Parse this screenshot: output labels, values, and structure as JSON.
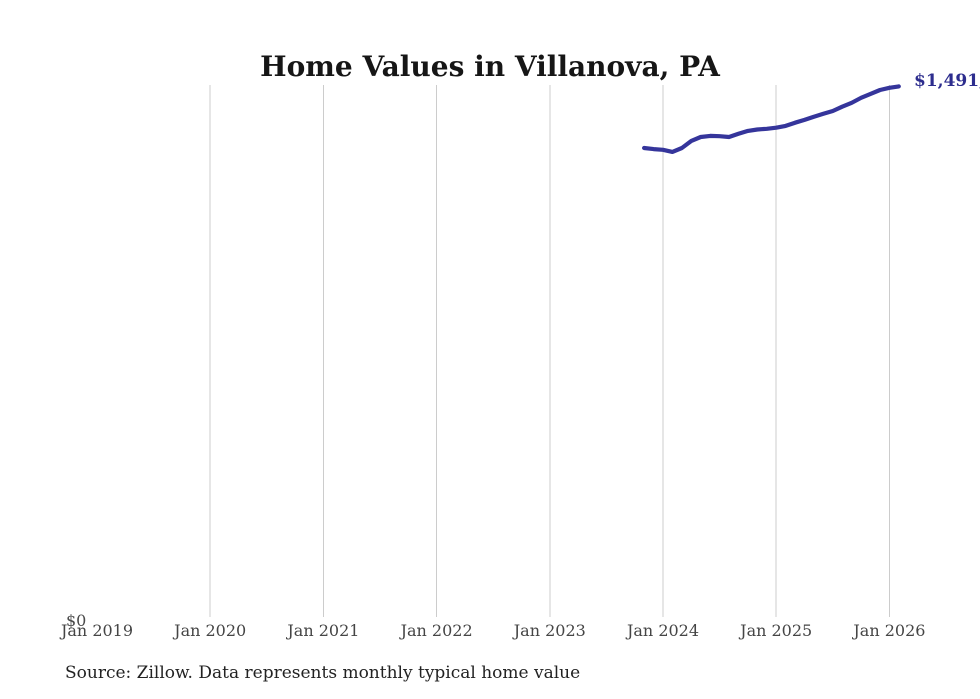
{
  "chart": {
    "title": "Home Values in Villanova, PA",
    "y_zero_label": "$0",
    "latest_value_label": "$1,491,",
    "source_note": "Source: Zillow. Data represents monthly typical home value"
  },
  "colors": {
    "line": "#35359B",
    "end_label_text": "#2D2D8E",
    "grid": "#CCCCCC",
    "title_text": "#161616",
    "tick_text": "#454545"
  },
  "chart_data": {
    "type": "line",
    "title": "Home Values in Villanova, PA",
    "xlabel": "",
    "ylabel": "",
    "ylim": [
      0,
      1495000
    ],
    "grid": "vertical-only",
    "legend": "none",
    "x_ticks": [
      {
        "label": "Jan 2019",
        "gridline": false
      },
      {
        "label": "Jan 2020",
        "gridline": true
      },
      {
        "label": "Jan 2021",
        "gridline": true
      },
      {
        "label": "Jan 2022",
        "gridline": true
      },
      {
        "label": "Jan 2023",
        "gridline": true
      },
      {
        "label": "Jan 2024",
        "gridline": true
      },
      {
        "label": "Jan 2025",
        "gridline": true
      },
      {
        "label": "Jan 2026",
        "gridline": true
      }
    ],
    "first_point_month_offset": 58,
    "categories": [
      "Nov 2023",
      "Dec 2023",
      "Jan 2024",
      "Feb 2024",
      "Mar 2024",
      "Apr 2024",
      "May 2024",
      "Jun 2024",
      "Jul 2024",
      "Aug 2024",
      "Sep 2024",
      "Oct 2024",
      "Nov 2024",
      "Dec 2024",
      "Jan 2025",
      "Feb 2025",
      "Mar 2025",
      "Apr 2025",
      "May 2025",
      "Jun 2025",
      "Jul 2025",
      "Aug 2025",
      "Sep 2025",
      "Oct 2025",
      "Nov 2025",
      "Dec 2025",
      "Jan 2026",
      "Feb 2026"
    ],
    "series": [
      {
        "name": "Monthly typical home value",
        "color": "#35359B",
        "values": [
          1318000,
          1315000,
          1313000,
          1307000,
          1318000,
          1338000,
          1349000,
          1352000,
          1351000,
          1349000,
          1358000,
          1366000,
          1370000,
          1372000,
          1375000,
          1380000,
          1389000,
          1397000,
          1406000,
          1414000,
          1422000,
          1434000,
          1445000,
          1459000,
          1470000,
          1481000,
          1487000,
          1491000
        ]
      }
    ],
    "end_annotation": "$1,491,"
  }
}
